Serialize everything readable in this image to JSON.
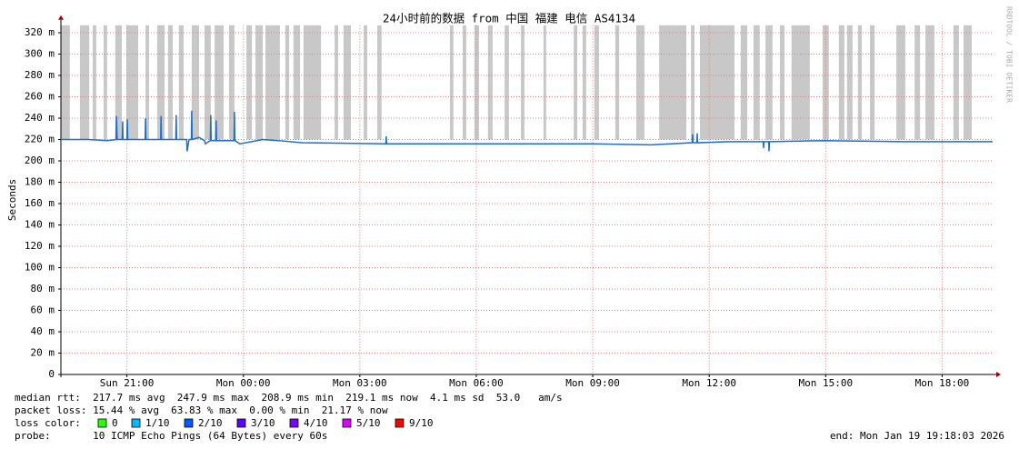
{
  "chart_data": {
    "type": "line",
    "title": "24小时前的数据 from 中国 福建 电信 AS4134",
    "ylabel": "Seconds",
    "watermark": "RRDTOOL / TOBI OETIKER",
    "xlim": [
      19.3,
      43.3
    ],
    "xticks": [
      {
        "value": 21,
        "label": "Sun 21:00"
      },
      {
        "value": 24,
        "label": "Mon 00:00"
      },
      {
        "value": 27,
        "label": "Mon 03:00"
      },
      {
        "value": 30,
        "label": "Mon 06:00"
      },
      {
        "value": 33,
        "label": "Mon 09:00"
      },
      {
        "value": 36,
        "label": "Mon 12:00"
      },
      {
        "value": 39,
        "label": "Mon 15:00"
      },
      {
        "value": 42,
        "label": "Mon 18:00"
      }
    ],
    "ylim": [
      0,
      327
    ],
    "yticks": [
      0,
      {
        "value": 20,
        "label": "20 m"
      },
      {
        "value": 40,
        "label": "40 m"
      },
      {
        "value": 60,
        "label": "60 m"
      },
      {
        "value": 80,
        "label": "80 m"
      },
      {
        "value": 100,
        "label": "100 m"
      },
      {
        "value": 120,
        "label": "120 m"
      },
      {
        "value": 140,
        "label": "140 m"
      },
      {
        "value": 160,
        "label": "160 m"
      },
      {
        "value": 180,
        "label": "180 m"
      },
      {
        "value": 200,
        "label": "200 m"
      },
      {
        "value": 220,
        "label": "220 m"
      },
      {
        "value": 240,
        "label": "240 m"
      },
      {
        "value": 260,
        "label": "260 m"
      },
      {
        "value": 280,
        "label": "280 m"
      },
      {
        "value": 300,
        "label": "300 m"
      },
      {
        "value": 320,
        "label": "320 m"
      }
    ],
    "grid": true,
    "smoke_color": "#c8c8c8",
    "smoke_start": [
      19.3,
      19.79,
      20.12,
      20.4,
      20.7,
      20.99,
      21.48,
      21.78,
      22.06,
      22.34,
      22.67,
      23.0,
      23.26,
      23.63,
      24.08,
      24.31,
      24.57,
      25.08,
      25.29,
      25.55,
      26.35,
      26.58,
      27.1,
      27.45,
      29.32,
      29.65,
      29.95,
      30.3,
      30.73,
      31.15,
      31.73,
      32.51,
      32.74,
      33.04,
      33.58,
      34.12,
      34.71,
      35.53,
      35.76,
      36.81,
      37.14,
      37.45,
      37.82,
      38.12,
      38.92,
      39.34,
      39.55,
      39.83,
      40.14,
      40.82,
      41.29,
      41.57,
      42.29,
      42.55
    ],
    "smoke_end": [
      19.53,
      20.03,
      20.21,
      20.49,
      20.87,
      21.29,
      21.57,
      21.97,
      22.18,
      22.46,
      22.86,
      23.16,
      23.49,
      23.77,
      24.22,
      24.5,
      24.94,
      25.18,
      25.46,
      26.0,
      26.44,
      26.77,
      27.19,
      27.56,
      29.41,
      29.74,
      30.07,
      30.42,
      30.84,
      31.24,
      31.8,
      32.6,
      32.83,
      33.16,
      33.68,
      34.33,
      35.41,
      35.62,
      36.65,
      36.98,
      37.3,
      37.63,
      37.94,
      38.59,
      39.08,
      39.48,
      39.69,
      39.93,
      40.26,
      41.05,
      41.43,
      41.8,
      42.43,
      42.76
    ],
    "series": [
      {
        "color": "#1e6fd0",
        "x": [
          19.3,
          20.0,
          20.5,
          20.72,
          20.73,
          20.75,
          20.88,
          20.89,
          20.9,
          21.0,
          21.01,
          21.02,
          21.47,
          21.48,
          21.49,
          21.87,
          21.88,
          21.89,
          22.26,
          22.27,
          22.28,
          22.54,
          22.55,
          22.6,
          22.66,
          22.67,
          22.68,
          22.86,
          23.0,
          23.02,
          23.15,
          23.16,
          23.17,
          23.29,
          23.3,
          23.31,
          23.76,
          23.77,
          23.78,
          23.91,
          24.5,
          24.9,
          25.5,
          27.67,
          27.68,
          27.69,
          30,
          33,
          34.5,
          35.0,
          35.56,
          35.57,
          35.58,
          35.68,
          35.69,
          35.7,
          36.5,
          37.39,
          37.4,
          37.41,
          37.53,
          37.54,
          37.55,
          39,
          41,
          43.3
        ],
        "values": [
          220,
          220,
          219,
          220,
          242,
          220,
          220,
          237,
          220,
          220,
          239,
          220,
          220,
          240,
          220,
          220,
          242,
          220,
          220,
          243,
          220,
          220,
          209,
          220,
          220,
          247,
          220,
          222,
          219,
          216,
          219,
          243,
          219,
          219,
          238,
          219,
          219,
          246,
          219,
          216,
          220,
          219,
          217,
          216,
          223,
          216,
          216,
          216,
          215,
          216,
          217,
          225,
          217,
          217,
          226,
          217,
          218,
          218,
          212,
          218,
          218,
          209,
          218,
          219,
          218,
          218
        ]
      }
    ],
    "stats": {
      "median_rtt": "median rtt:  217.7 ms avg  247.9 ms max  208.9 ms min  219.1 ms now  4.1 ms sd  53.0   am/s",
      "packet_loss": "packet loss: 15.44 % avg  63.83 % max  0.00 % min  21.17 % now",
      "loss_color_label": "loss color:",
      "loss_colors": [
        {
          "label": "0",
          "color": "#26ff00"
        },
        {
          "label": "1/10",
          "color": "#00b8ff"
        },
        {
          "label": "2/10",
          "color": "#0059ff"
        },
        {
          "label": "3/10",
          "color": "#5e00ff"
        },
        {
          "label": "4/10",
          "color": "#7e00ff"
        },
        {
          "label": "5/10",
          "color": "#dd00ff"
        },
        {
          "label": "9/10",
          "color": "#ff0000"
        }
      ],
      "probe": "probe:       10 ICMP Echo Pings (64 Bytes) every 60s",
      "end": "end: Mon Jan 19 19:18:03 2026"
    }
  }
}
